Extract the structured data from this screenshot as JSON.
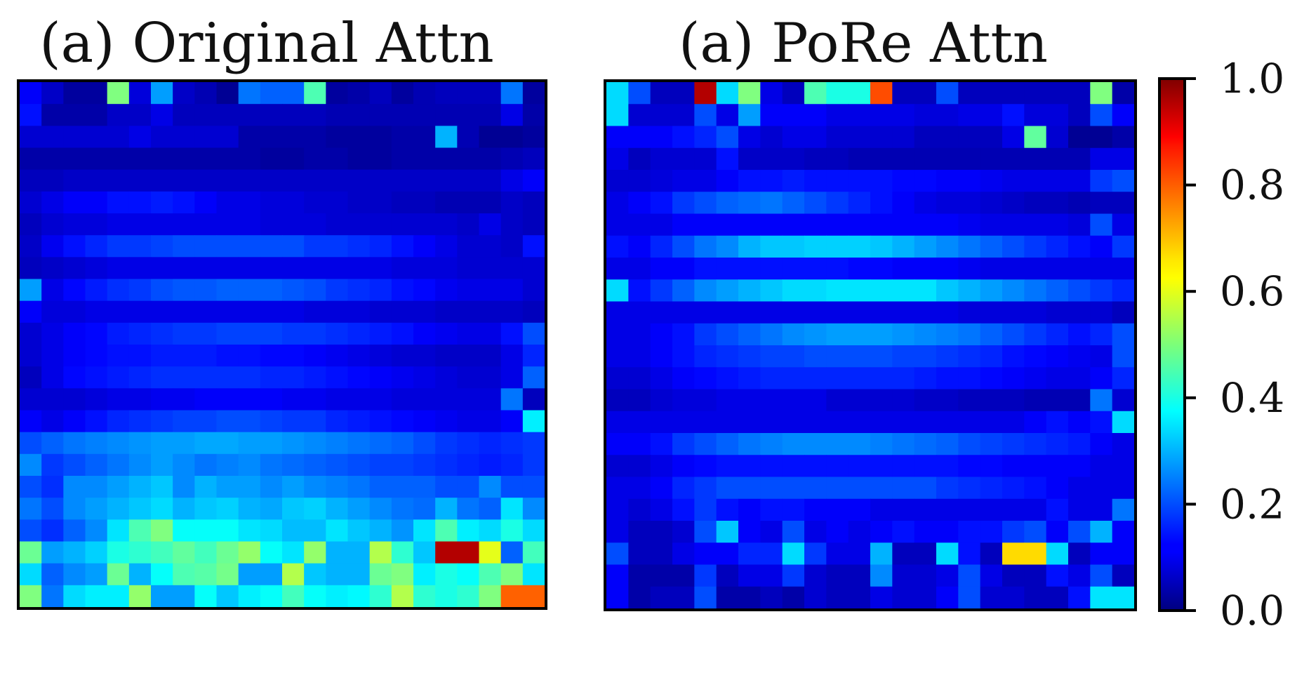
{
  "chart_data": [
    {
      "type": "heatmap",
      "title": "(a) Original Attn",
      "xlabel": "",
      "ylabel": "",
      "colormap": "jet",
      "vmin": 0.0,
      "vmax": 1.0,
      "values": [
        [
          0.12,
          0.07,
          0.03,
          0.03,
          0.5,
          0.09,
          0.28,
          0.07,
          0.05,
          0.02,
          0.24,
          0.22,
          0.22,
          0.45,
          0.03,
          0.04,
          0.06,
          0.03,
          0.05,
          0.06,
          0.06,
          0.06,
          0.24,
          0.03
        ],
        [
          0.14,
          0.04,
          0.04,
          0.04,
          0.07,
          0.07,
          0.1,
          0.06,
          0.06,
          0.06,
          0.06,
          0.06,
          0.06,
          0.06,
          0.05,
          0.05,
          0.05,
          0.05,
          0.05,
          0.05,
          0.05,
          0.05,
          0.1,
          0.04
        ],
        [
          0.08,
          0.08,
          0.08,
          0.08,
          0.08,
          0.1,
          0.08,
          0.08,
          0.08,
          0.08,
          0.04,
          0.04,
          0.04,
          0.04,
          0.03,
          0.03,
          0.03,
          0.04,
          0.04,
          0.3,
          0.05,
          0.02,
          0.02,
          0.03
        ],
        [
          0.04,
          0.04,
          0.04,
          0.04,
          0.04,
          0.04,
          0.04,
          0.04,
          0.04,
          0.04,
          0.04,
          0.03,
          0.03,
          0.04,
          0.04,
          0.03,
          0.03,
          0.04,
          0.04,
          0.04,
          0.04,
          0.04,
          0.05,
          0.06
        ],
        [
          0.06,
          0.06,
          0.07,
          0.07,
          0.07,
          0.07,
          0.07,
          0.07,
          0.07,
          0.07,
          0.07,
          0.07,
          0.07,
          0.07,
          0.07,
          0.07,
          0.07,
          0.07,
          0.07,
          0.07,
          0.07,
          0.07,
          0.1,
          0.12
        ],
        [
          0.08,
          0.1,
          0.12,
          0.12,
          0.14,
          0.14,
          0.15,
          0.14,
          0.12,
          0.1,
          0.1,
          0.09,
          0.09,
          0.08,
          0.08,
          0.07,
          0.07,
          0.06,
          0.06,
          0.05,
          0.05,
          0.05,
          0.07,
          0.06
        ],
        [
          0.06,
          0.08,
          0.09,
          0.09,
          0.1,
          0.1,
          0.1,
          0.1,
          0.1,
          0.1,
          0.1,
          0.09,
          0.09,
          0.09,
          0.08,
          0.08,
          0.08,
          0.08,
          0.08,
          0.08,
          0.07,
          0.1,
          0.07,
          0.06
        ],
        [
          0.07,
          0.11,
          0.14,
          0.16,
          0.18,
          0.18,
          0.19,
          0.2,
          0.2,
          0.2,
          0.2,
          0.2,
          0.2,
          0.18,
          0.18,
          0.17,
          0.16,
          0.14,
          0.12,
          0.1,
          0.08,
          0.08,
          0.07,
          0.14
        ],
        [
          0.06,
          0.07,
          0.08,
          0.09,
          0.1,
          0.1,
          0.1,
          0.1,
          0.1,
          0.1,
          0.1,
          0.1,
          0.1,
          0.1,
          0.1,
          0.1,
          0.1,
          0.09,
          0.09,
          0.09,
          0.08,
          0.08,
          0.08,
          0.08
        ],
        [
          0.28,
          0.1,
          0.13,
          0.15,
          0.17,
          0.18,
          0.2,
          0.21,
          0.21,
          0.22,
          0.22,
          0.22,
          0.21,
          0.2,
          0.18,
          0.17,
          0.16,
          0.14,
          0.13,
          0.11,
          0.1,
          0.1,
          0.1,
          0.08
        ],
        [
          0.12,
          0.09,
          0.09,
          0.1,
          0.1,
          0.1,
          0.1,
          0.1,
          0.1,
          0.1,
          0.1,
          0.1,
          0.1,
          0.09,
          0.09,
          0.09,
          0.08,
          0.08,
          0.08,
          0.07,
          0.07,
          0.07,
          0.07,
          0.06
        ],
        [
          0.08,
          0.1,
          0.12,
          0.13,
          0.15,
          0.16,
          0.17,
          0.18,
          0.18,
          0.19,
          0.19,
          0.19,
          0.18,
          0.18,
          0.17,
          0.16,
          0.15,
          0.14,
          0.12,
          0.11,
          0.1,
          0.1,
          0.14,
          0.2
        ],
        [
          0.08,
          0.1,
          0.12,
          0.13,
          0.14,
          0.14,
          0.15,
          0.15,
          0.15,
          0.14,
          0.14,
          0.13,
          0.13,
          0.12,
          0.11,
          0.1,
          0.09,
          0.08,
          0.08,
          0.07,
          0.07,
          0.07,
          0.1,
          0.16
        ],
        [
          0.06,
          0.1,
          0.13,
          0.14,
          0.15,
          0.16,
          0.17,
          0.17,
          0.17,
          0.17,
          0.17,
          0.16,
          0.16,
          0.15,
          0.14,
          0.13,
          0.12,
          0.11,
          0.1,
          0.09,
          0.08,
          0.08,
          0.1,
          0.22
        ],
        [
          0.08,
          0.08,
          0.08,
          0.09,
          0.1,
          0.1,
          0.11,
          0.11,
          0.12,
          0.12,
          0.12,
          0.12,
          0.11,
          0.11,
          0.1,
          0.1,
          0.1,
          0.09,
          0.09,
          0.09,
          0.09,
          0.09,
          0.24,
          0.06
        ],
        [
          0.12,
          0.1,
          0.12,
          0.14,
          0.16,
          0.17,
          0.18,
          0.19,
          0.19,
          0.2,
          0.2,
          0.19,
          0.18,
          0.18,
          0.16,
          0.15,
          0.14,
          0.13,
          0.12,
          0.11,
          0.1,
          0.1,
          0.12,
          0.36
        ],
        [
          0.2,
          0.22,
          0.24,
          0.25,
          0.26,
          0.27,
          0.28,
          0.28,
          0.29,
          0.29,
          0.28,
          0.28,
          0.27,
          0.26,
          0.25,
          0.24,
          0.23,
          0.22,
          0.2,
          0.18,
          0.17,
          0.16,
          0.17,
          0.18
        ],
        [
          0.26,
          0.18,
          0.2,
          0.22,
          0.24,
          0.26,
          0.28,
          0.26,
          0.24,
          0.25,
          0.26,
          0.24,
          0.23,
          0.22,
          0.21,
          0.2,
          0.19,
          0.19,
          0.18,
          0.17,
          0.16,
          0.15,
          0.16,
          0.18
        ],
        [
          0.2,
          0.17,
          0.26,
          0.26,
          0.28,
          0.3,
          0.32,
          0.26,
          0.3,
          0.28,
          0.28,
          0.26,
          0.28,
          0.26,
          0.25,
          0.24,
          0.22,
          0.22,
          0.22,
          0.2,
          0.2,
          0.26,
          0.2,
          0.2
        ],
        [
          0.24,
          0.2,
          0.26,
          0.28,
          0.3,
          0.32,
          0.34,
          0.3,
          0.32,
          0.33,
          0.3,
          0.29,
          0.32,
          0.33,
          0.3,
          0.28,
          0.26,
          0.24,
          0.23,
          0.3,
          0.24,
          0.22,
          0.35,
          0.26
        ],
        [
          0.2,
          0.17,
          0.22,
          0.26,
          0.35,
          0.45,
          0.5,
          0.38,
          0.38,
          0.38,
          0.35,
          0.34,
          0.31,
          0.31,
          0.35,
          0.32,
          0.3,
          0.27,
          0.35,
          0.45,
          0.36,
          0.34,
          0.4,
          0.34
        ],
        [
          0.48,
          0.28,
          0.3,
          0.33,
          0.4,
          0.42,
          0.44,
          0.47,
          0.44,
          0.48,
          0.52,
          0.38,
          0.35,
          0.52,
          0.3,
          0.3,
          0.55,
          0.42,
          0.32,
          0.95,
          0.95,
          0.6,
          0.22,
          0.44
        ],
        [
          0.34,
          0.22,
          0.26,
          0.28,
          0.48,
          0.3,
          0.38,
          0.45,
          0.46,
          0.49,
          0.28,
          0.28,
          0.55,
          0.32,
          0.3,
          0.3,
          0.48,
          0.5,
          0.36,
          0.4,
          0.38,
          0.45,
          0.5,
          0.35
        ],
        [
          0.5,
          0.24,
          0.34,
          0.36,
          0.36,
          0.52,
          0.28,
          0.28,
          0.38,
          0.32,
          0.36,
          0.38,
          0.44,
          0.38,
          0.36,
          0.37,
          0.42,
          0.55,
          0.42,
          0.4,
          0.42,
          0.5,
          0.78,
          0.78
        ]
      ]
    },
    {
      "type": "heatmap",
      "title": "(a) PoRe Attn",
      "xlabel": "",
      "ylabel": "",
      "colormap": "jet",
      "vmin": 0.0,
      "vmax": 1.0,
      "values": [
        [
          0.34,
          0.2,
          0.06,
          0.06,
          0.95,
          0.34,
          0.5,
          0.1,
          0.06,
          0.45,
          0.4,
          0.4,
          0.8,
          0.06,
          0.06,
          0.2,
          0.06,
          0.06,
          0.06,
          0.06,
          0.06,
          0.06,
          0.5,
          0.04
        ],
        [
          0.34,
          0.08,
          0.08,
          0.08,
          0.2,
          0.1,
          0.28,
          0.12,
          0.12,
          0.12,
          0.1,
          0.1,
          0.1,
          0.1,
          0.09,
          0.09,
          0.1,
          0.1,
          0.14,
          0.09,
          0.09,
          0.06,
          0.2,
          0.12
        ],
        [
          0.12,
          0.12,
          0.12,
          0.14,
          0.16,
          0.2,
          0.1,
          0.08,
          0.1,
          0.1,
          0.08,
          0.08,
          0.08,
          0.08,
          0.06,
          0.06,
          0.06,
          0.06,
          0.1,
          0.47,
          0.08,
          0.02,
          0.02,
          0.04
        ],
        [
          0.1,
          0.06,
          0.08,
          0.08,
          0.08,
          0.14,
          0.07,
          0.07,
          0.07,
          0.06,
          0.06,
          0.05,
          0.05,
          0.05,
          0.05,
          0.05,
          0.05,
          0.05,
          0.05,
          0.05,
          0.05,
          0.05,
          0.1,
          0.1
        ],
        [
          0.08,
          0.08,
          0.09,
          0.1,
          0.1,
          0.12,
          0.14,
          0.14,
          0.15,
          0.14,
          0.14,
          0.14,
          0.14,
          0.13,
          0.13,
          0.12,
          0.12,
          0.11,
          0.1,
          0.1,
          0.1,
          0.1,
          0.18,
          0.2
        ],
        [
          0.1,
          0.12,
          0.14,
          0.18,
          0.2,
          0.22,
          0.23,
          0.24,
          0.22,
          0.2,
          0.18,
          0.16,
          0.14,
          0.12,
          0.1,
          0.09,
          0.09,
          0.08,
          0.07,
          0.06,
          0.06,
          0.05,
          0.06,
          0.06
        ],
        [
          0.1,
          0.1,
          0.1,
          0.12,
          0.12,
          0.12,
          0.12,
          0.12,
          0.12,
          0.12,
          0.12,
          0.12,
          0.12,
          0.12,
          0.12,
          0.12,
          0.11,
          0.1,
          0.1,
          0.1,
          0.1,
          0.09,
          0.2,
          0.1
        ],
        [
          0.14,
          0.12,
          0.16,
          0.2,
          0.24,
          0.26,
          0.3,
          0.32,
          0.32,
          0.33,
          0.33,
          0.33,
          0.32,
          0.3,
          0.28,
          0.26,
          0.24,
          0.22,
          0.2,
          0.18,
          0.16,
          0.14,
          0.12,
          0.18
        ],
        [
          0.1,
          0.1,
          0.12,
          0.12,
          0.14,
          0.14,
          0.14,
          0.14,
          0.14,
          0.14,
          0.14,
          0.13,
          0.13,
          0.12,
          0.12,
          0.12,
          0.11,
          0.1,
          0.1,
          0.1,
          0.1,
          0.1,
          0.1,
          0.1
        ],
        [
          0.34,
          0.14,
          0.18,
          0.22,
          0.26,
          0.28,
          0.3,
          0.32,
          0.34,
          0.34,
          0.35,
          0.35,
          0.35,
          0.35,
          0.35,
          0.32,
          0.3,
          0.28,
          0.26,
          0.24,
          0.22,
          0.2,
          0.18,
          0.16
        ],
        [
          0.1,
          0.1,
          0.1,
          0.1,
          0.1,
          0.1,
          0.1,
          0.1,
          0.1,
          0.1,
          0.1,
          0.1,
          0.1,
          0.1,
          0.1,
          0.1,
          0.09,
          0.09,
          0.09,
          0.09,
          0.08,
          0.08,
          0.08,
          0.06
        ],
        [
          0.1,
          0.1,
          0.12,
          0.14,
          0.18,
          0.2,
          0.22,
          0.24,
          0.26,
          0.27,
          0.28,
          0.28,
          0.28,
          0.27,
          0.26,
          0.25,
          0.24,
          0.22,
          0.2,
          0.18,
          0.16,
          0.14,
          0.16,
          0.2
        ],
        [
          0.1,
          0.1,
          0.12,
          0.14,
          0.16,
          0.17,
          0.18,
          0.19,
          0.19,
          0.2,
          0.2,
          0.2,
          0.2,
          0.19,
          0.19,
          0.18,
          0.17,
          0.16,
          0.14,
          0.13,
          0.12,
          0.11,
          0.1,
          0.2
        ],
        [
          0.08,
          0.08,
          0.1,
          0.12,
          0.13,
          0.14,
          0.15,
          0.16,
          0.16,
          0.16,
          0.16,
          0.16,
          0.16,
          0.16,
          0.15,
          0.14,
          0.14,
          0.13,
          0.12,
          0.11,
          0.1,
          0.1,
          0.12,
          0.16
        ],
        [
          0.06,
          0.06,
          0.08,
          0.09,
          0.09,
          0.1,
          0.1,
          0.1,
          0.1,
          0.1,
          0.08,
          0.08,
          0.08,
          0.08,
          0.07,
          0.07,
          0.06,
          0.06,
          0.06,
          0.05,
          0.05,
          0.05,
          0.24,
          0.08
        ],
        [
          0.1,
          0.1,
          0.1,
          0.1,
          0.1,
          0.1,
          0.1,
          0.1,
          0.1,
          0.1,
          0.1,
          0.1,
          0.1,
          0.1,
          0.1,
          0.1,
          0.1,
          0.1,
          0.1,
          0.12,
          0.14,
          0.12,
          0.14,
          0.34
        ],
        [
          0.12,
          0.12,
          0.14,
          0.18,
          0.2,
          0.22,
          0.24,
          0.25,
          0.26,
          0.26,
          0.26,
          0.26,
          0.25,
          0.24,
          0.23,
          0.22,
          0.2,
          0.19,
          0.18,
          0.17,
          0.16,
          0.15,
          0.12,
          0.1
        ],
        [
          0.08,
          0.08,
          0.1,
          0.12,
          0.13,
          0.14,
          0.14,
          0.14,
          0.14,
          0.14,
          0.14,
          0.14,
          0.14,
          0.14,
          0.14,
          0.14,
          0.13,
          0.13,
          0.12,
          0.12,
          0.12,
          0.12,
          0.1,
          0.1
        ],
        [
          0.1,
          0.1,
          0.12,
          0.16,
          0.18,
          0.2,
          0.2,
          0.2,
          0.2,
          0.2,
          0.2,
          0.2,
          0.2,
          0.2,
          0.2,
          0.18,
          0.17,
          0.16,
          0.15,
          0.14,
          0.12,
          0.1,
          0.1,
          0.1
        ],
        [
          0.1,
          0.08,
          0.1,
          0.14,
          0.18,
          0.14,
          0.12,
          0.14,
          0.14,
          0.12,
          0.12,
          0.12,
          0.1,
          0.1,
          0.1,
          0.1,
          0.1,
          0.1,
          0.1,
          0.1,
          0.14,
          0.1,
          0.1,
          0.24
        ],
        [
          0.1,
          0.06,
          0.06,
          0.08,
          0.2,
          0.32,
          0.12,
          0.1,
          0.2,
          0.1,
          0.12,
          0.1,
          0.12,
          0.14,
          0.12,
          0.12,
          0.14,
          0.14,
          0.18,
          0.2,
          0.12,
          0.2,
          0.3,
          0.12
        ],
        [
          0.2,
          0.06,
          0.06,
          0.1,
          0.12,
          0.12,
          0.16,
          0.16,
          0.34,
          0.18,
          0.1,
          0.1,
          0.3,
          0.06,
          0.06,
          0.34,
          0.14,
          0.06,
          0.66,
          0.66,
          0.34,
          0.06,
          0.12,
          0.12
        ],
        [
          0.12,
          0.04,
          0.04,
          0.04,
          0.18,
          0.06,
          0.1,
          0.1,
          0.18,
          0.08,
          0.06,
          0.06,
          0.26,
          0.08,
          0.08,
          0.1,
          0.2,
          0.1,
          0.06,
          0.06,
          0.14,
          0.1,
          0.2,
          0.06
        ],
        [
          0.12,
          0.04,
          0.06,
          0.06,
          0.2,
          0.04,
          0.04,
          0.06,
          0.04,
          0.08,
          0.06,
          0.06,
          0.1,
          0.08,
          0.08,
          0.12,
          0.2,
          0.08,
          0.08,
          0.06,
          0.06,
          0.14,
          0.35,
          0.35
        ]
      ]
    }
  ],
  "colorbar": {
    "ticks": [
      "0.0",
      "0.2",
      "0.4",
      "0.6",
      "0.8",
      "1.0"
    ],
    "range": [
      0.0,
      1.0
    ]
  }
}
